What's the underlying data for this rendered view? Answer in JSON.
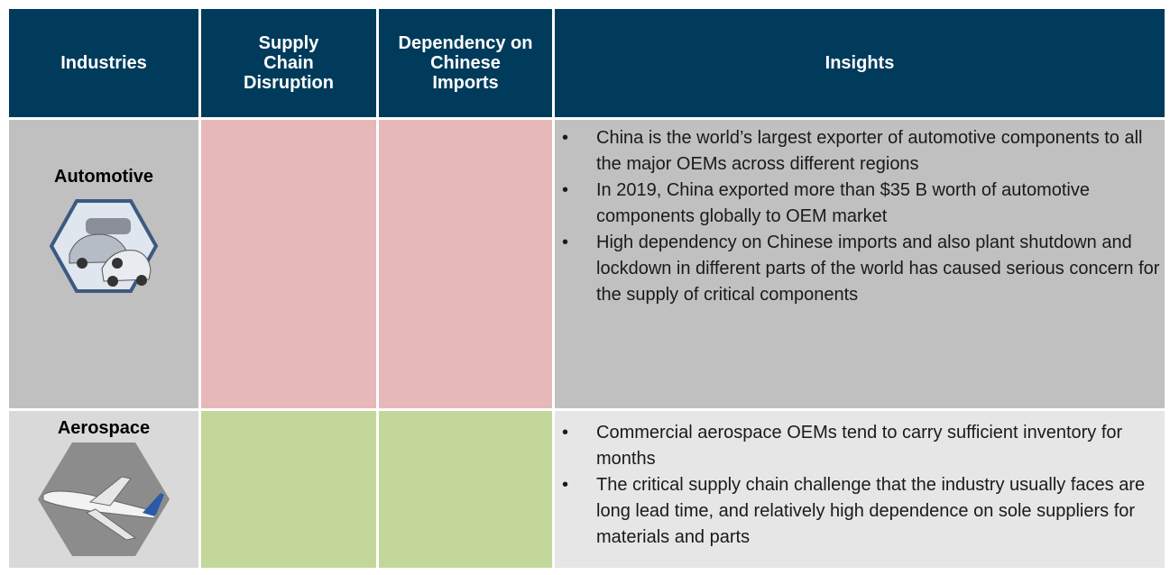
{
  "table": {
    "columns": [
      "Industries",
      "Supply Chain Disruption",
      "Dependency on Chinese Imports",
      "Insights"
    ],
    "rows": [
      {
        "industry": "Automotive",
        "insights": [
          "China is the world’s largest exporter of automotive components to all the major OEMs across different regions",
          "In 2019, China exported more than $35 B worth of automotive components globally to OEM market",
          "High dependency on Chinese imports and also plant shutdown and lockdown in different parts of the world has caused serious concern for the supply of critical components"
        ]
      },
      {
        "industry": "Aerospace",
        "insights": [
          "Commercial aerospace OEMs tend to carry sufficient inventory for months",
          "The critical supply chain challenge that the industry usually faces are long lead time, and relatively high dependence on sole suppliers for materials and parts"
        ]
      }
    ]
  }
}
